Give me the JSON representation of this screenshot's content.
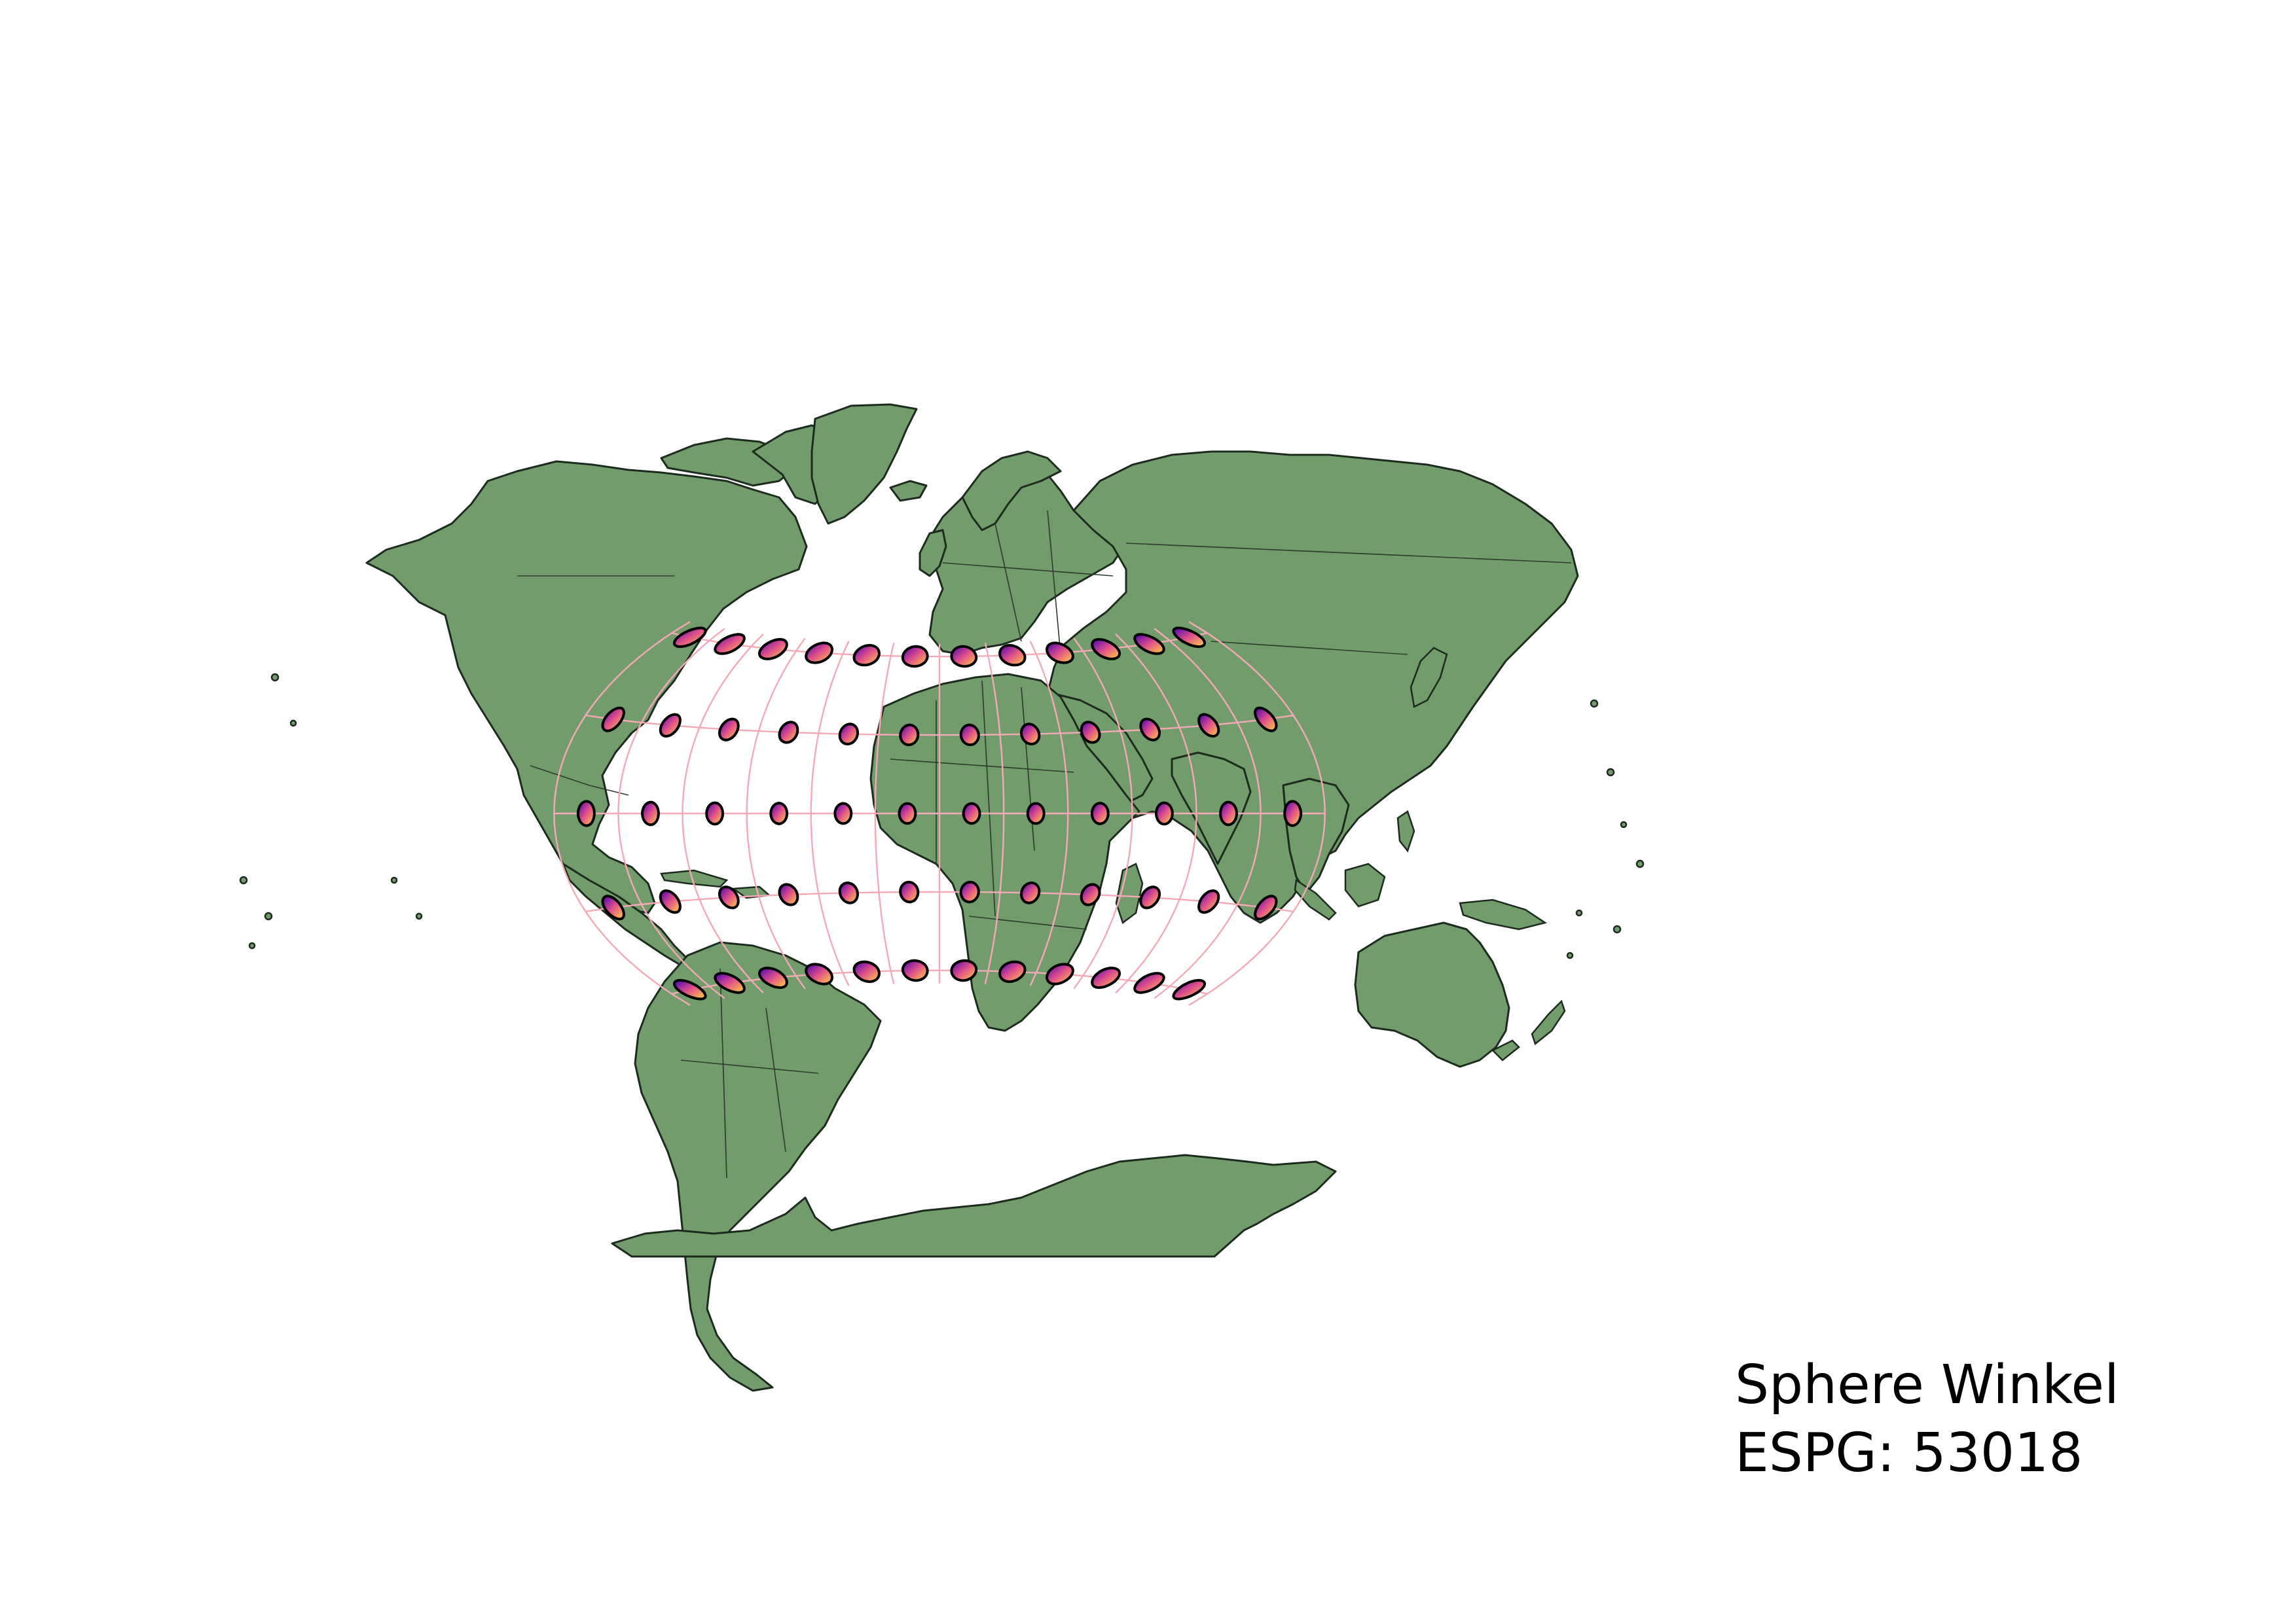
{
  "map": {
    "projection_name": "Sphere Winkel",
    "code_line": "ESPG: 53018",
    "land_color": "#739c6d",
    "land_stroke": "#1d2a1e",
    "graticule_color": "#f4a9b6",
    "tissot_gradient": [
      "#4a00b4",
      "#e0508a",
      "#ffd23f"
    ],
    "graticule": {
      "meridians_deg": [
        -180,
        -150,
        -120,
        -90,
        -60,
        -30,
        0,
        30,
        60,
        90,
        120,
        150,
        180
      ],
      "parallels_deg": [
        -60,
        -30,
        0,
        30,
        60
      ]
    },
    "tissot_indicatrices": {
      "longitudes_deg": [
        -165,
        -135,
        -105,
        -75,
        -45,
        -15,
        15,
        45,
        75,
        105,
        135,
        165
      ],
      "latitudes_deg": [
        -60,
        -30,
        0,
        30,
        60
      ]
    }
  }
}
